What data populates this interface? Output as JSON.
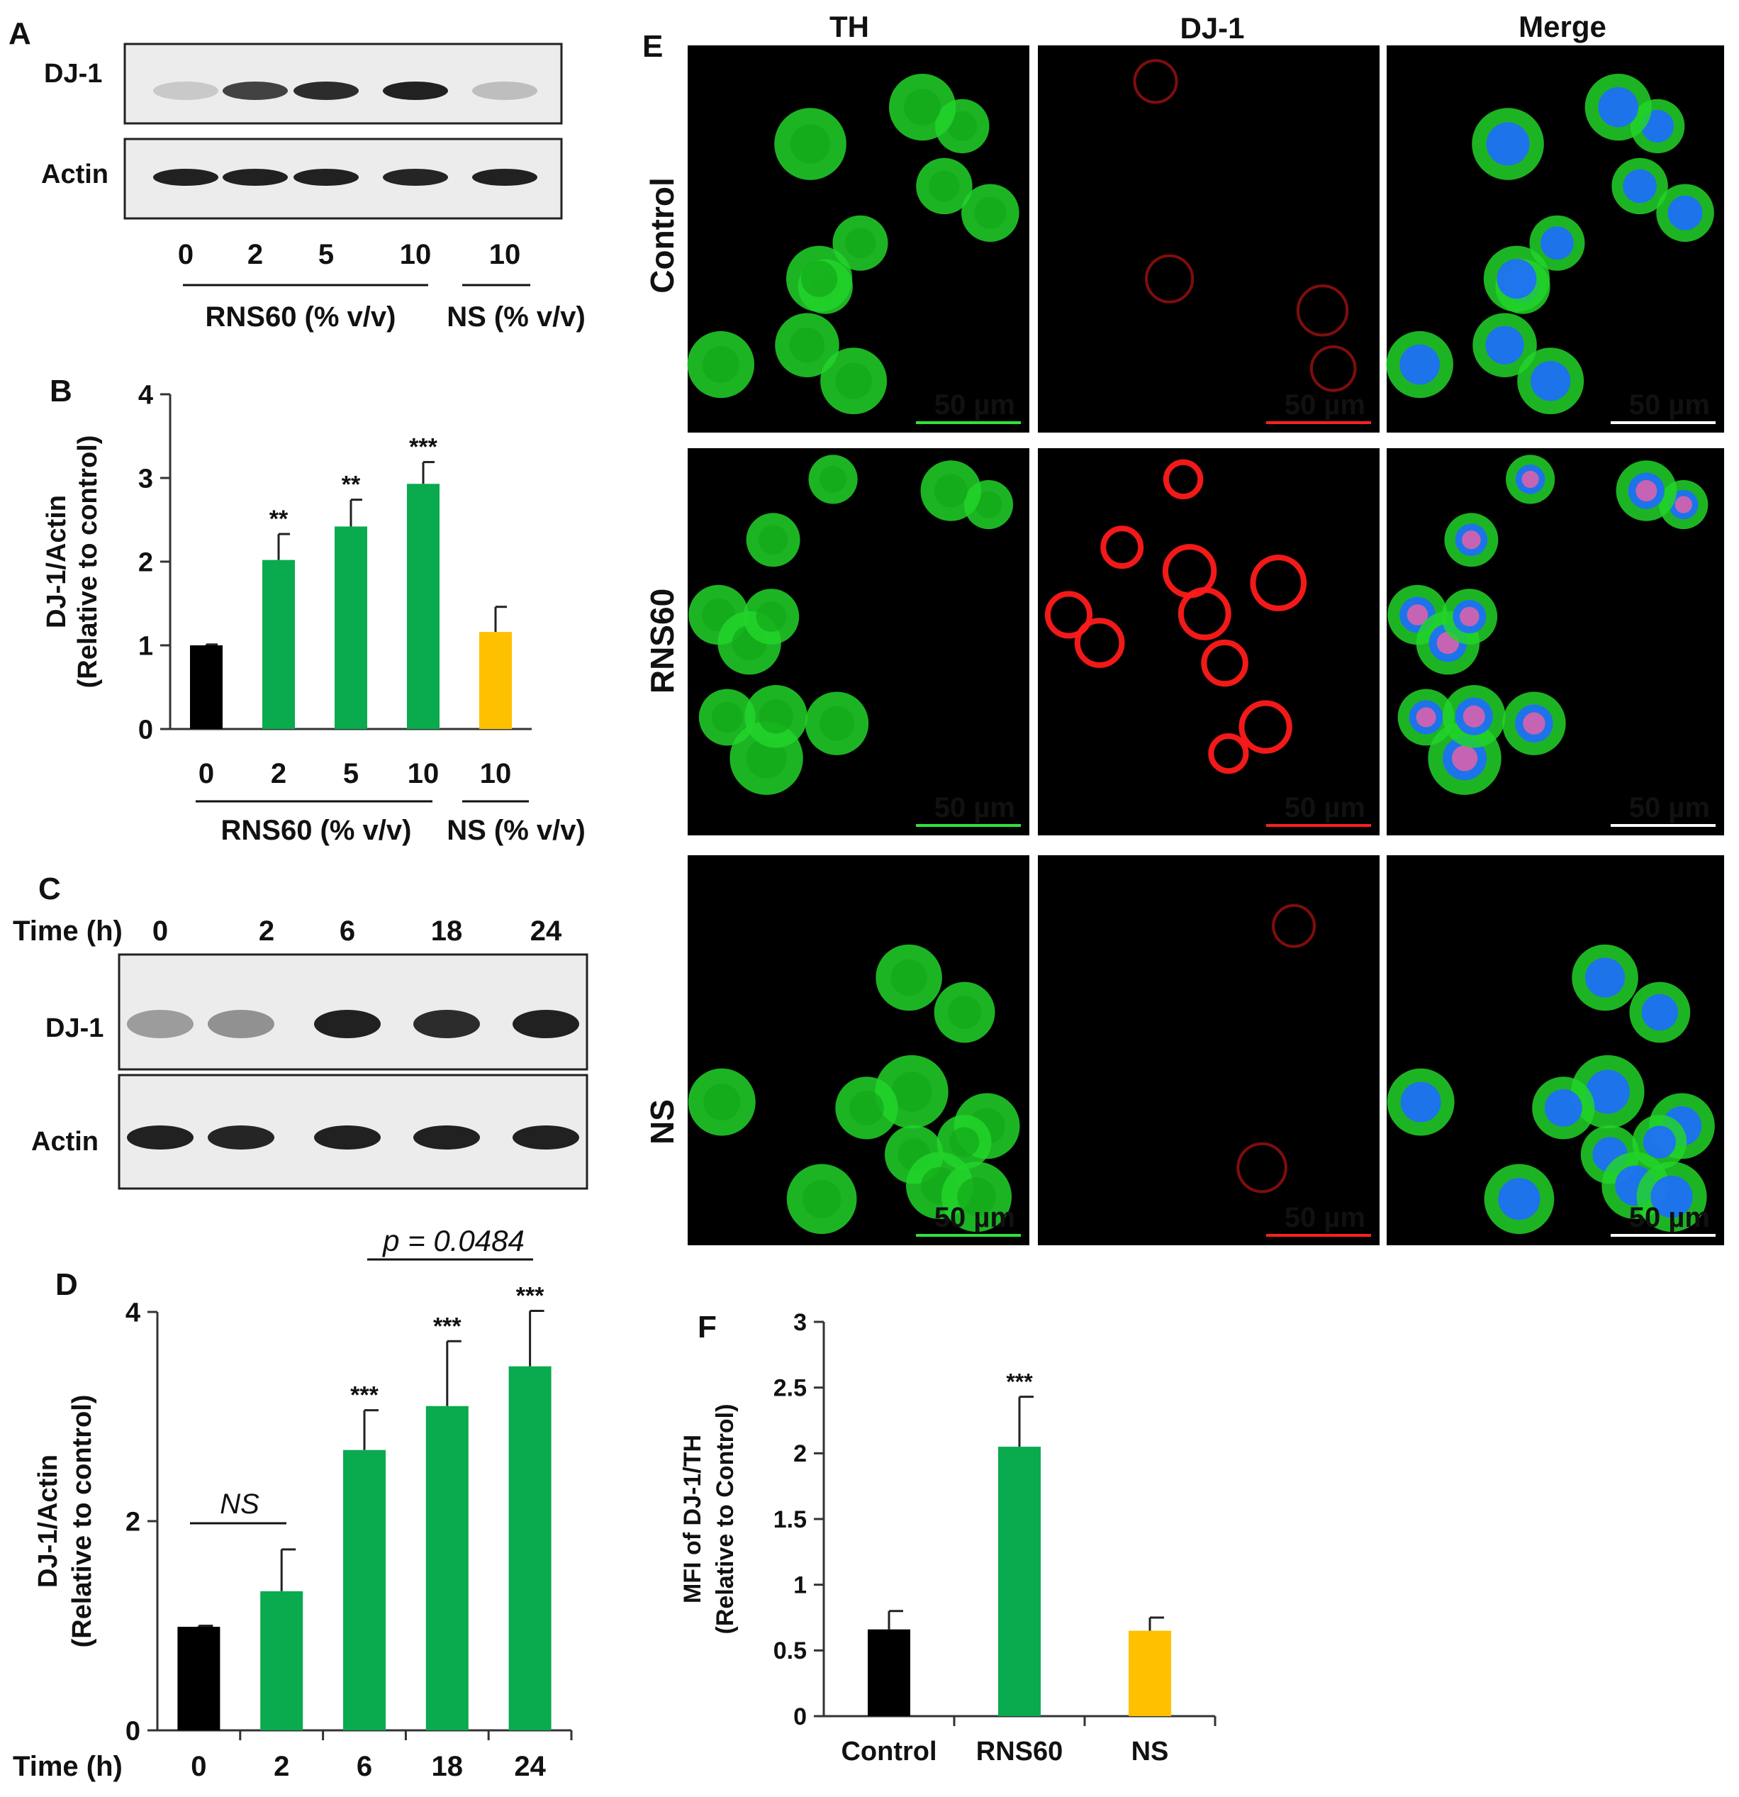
{
  "panels": {
    "A": {
      "letter": "A",
      "blot_labels": [
        "DJ-1",
        "Actin"
      ],
      "lanes": [
        "0",
        "2",
        "5",
        "10",
        "10"
      ],
      "group_rns": "RNS60 (% v/v)",
      "group_ns": "NS (% v/v)",
      "dj1_intensity": [
        0.15,
        0.75,
        0.85,
        0.9,
        0.2
      ],
      "actin_intensity": [
        0.9,
        0.9,
        0.9,
        0.88,
        0.9
      ]
    },
    "C": {
      "letter": "C",
      "time_label": "Time (h)",
      "times": [
        "0",
        "2",
        "6",
        "18",
        "24"
      ],
      "blot_labels": [
        "DJ-1",
        "Actin"
      ],
      "dj1_intensity": [
        0.35,
        0.4,
        0.9,
        0.85,
        0.9
      ],
      "actin_intensity": [
        0.9,
        0.88,
        0.9,
        0.9,
        0.9
      ]
    },
    "E": {
      "letter": "E",
      "columns": [
        "TH",
        "DJ-1",
        "Merge"
      ],
      "rows": [
        "Control",
        "RNS60",
        "NS"
      ],
      "scale_bar": "50 µm"
    }
  },
  "colors": {
    "black": "#000000",
    "green": "#0aaa4f",
    "orange": "#ffc000",
    "th_green": "#22d42a",
    "dj1_red": "#ff1a1a",
    "dapi_blue": "#1e6bff"
  },
  "chart_data": [
    {
      "panel": "B",
      "type": "bar",
      "ylabel": "DJ-1/Actin (Relative to control)",
      "ylim": [
        0,
        4
      ],
      "yticks": [
        "0",
        "1",
        "2",
        "3",
        "4"
      ],
      "categories": [
        "0",
        "2",
        "5",
        "10",
        "10"
      ],
      "group_labels": [
        "RNS60 (% v/v)",
        "NS (% v/v)"
      ],
      "values": [
        1.0,
        2.02,
        2.42,
        2.93,
        1.16
      ],
      "errors": [
        0.01,
        0.31,
        0.32,
        0.26,
        0.3
      ],
      "significance": [
        "",
        "**",
        "**",
        "***",
        ""
      ],
      "bar_colors": [
        "#000000",
        "#0aaa4f",
        "#0aaa4f",
        "#0aaa4f",
        "#ffc000"
      ]
    },
    {
      "panel": "D",
      "type": "bar",
      "xlabel": "Time (h)",
      "ylabel": "DJ-1/Actin (Relative to control)",
      "ylim": [
        0,
        4
      ],
      "yticks": [
        "0",
        "2",
        "4"
      ],
      "categories": [
        "0",
        "2",
        "6",
        "18",
        "24"
      ],
      "values": [
        0.99,
        1.33,
        2.68,
        3.1,
        3.48
      ],
      "errors": [
        0.01,
        0.4,
        0.38,
        0.62,
        0.53
      ],
      "significance": [
        "",
        "",
        "***",
        "***",
        "***"
      ],
      "bar_colors": [
        "#000000",
        "#0aaa4f",
        "#0aaa4f",
        "#0aaa4f",
        "#0aaa4f"
      ],
      "annotations": [
        "NS",
        "p = 0.0484"
      ]
    },
    {
      "panel": "F",
      "type": "bar",
      "ylabel": "MFI of DJ-1/TH (Relative to Control)",
      "ylim": [
        0,
        3
      ],
      "yticks": [
        "0",
        "0.5",
        "1",
        "1.5",
        "2",
        "2.5",
        "3"
      ],
      "categories": [
        "Control",
        "RNS60",
        "NS"
      ],
      "values": [
        0.66,
        2.05,
        0.65
      ],
      "errors": [
        0.14,
        0.38,
        0.1
      ],
      "significance": [
        "",
        "***",
        ""
      ],
      "bar_colors": [
        "#000000",
        "#0aaa4f",
        "#ffc000"
      ]
    }
  ]
}
